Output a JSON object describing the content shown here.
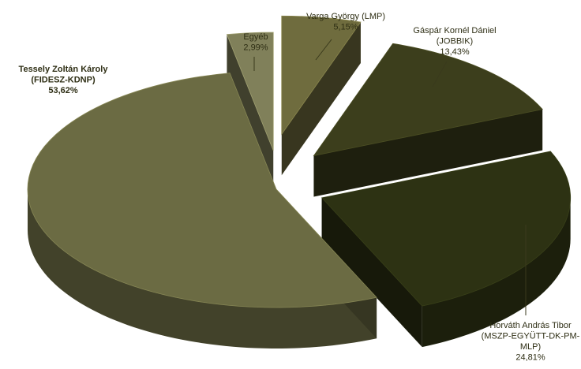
{
  "chart_data": {
    "type": "pie",
    "title": "",
    "slices": [
      {
        "name_lines": [
          "Varga György (LMP)"
        ],
        "value": 5.15,
        "value_label": "5,15%",
        "color": "#6f6c3e"
      },
      {
        "name_lines": [
          "Gáspár Kornél Dániel",
          "(JOBBIK)"
        ],
        "value": 13.43,
        "value_label": "13,43%",
        "color": "#3c3e1c"
      },
      {
        "name_lines": [
          "Horváth András Tibor",
          "(MSZP-EGYÜTT-DK-PM-",
          "MLP)"
        ],
        "value": 24.81,
        "value_label": "24,81%",
        "color": "#2d3213"
      },
      {
        "name_lines": [
          "Tessely Zoltán Károly",
          "(FIDESZ-KDNP)"
        ],
        "value": 53.62,
        "value_label": "53,62%",
        "color": "#6b6b43"
      },
      {
        "name_lines": [
          "Egyéb"
        ],
        "value": 2.99,
        "value_label": "2,99%",
        "color": "#80805a"
      }
    ]
  }
}
